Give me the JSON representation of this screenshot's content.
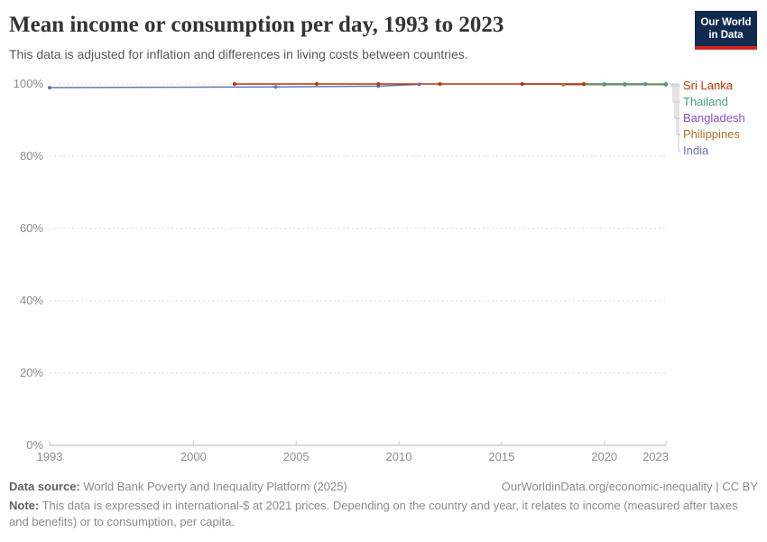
{
  "header": {
    "title": "Mean income or consumption per day, 1993 to 2023",
    "subtitle": "This data is adjusted for inflation and differences in living costs between countries."
  },
  "logo": {
    "line1": "Our World",
    "line2": "in Data"
  },
  "colors": {
    "logo_bg": "#112B4E",
    "logo_bar": "#CE261E",
    "axis": "#b3b3b3",
    "axis_tick": "#cccccc",
    "grid": "#dedede",
    "tick_label": "#8c8c8c",
    "connector": "#c9c9c9"
  },
  "chart_data": {
    "type": "line",
    "title": "Mean income or consumption per day, 1993 to 2023",
    "subtitle": "This data is adjusted for inflation and differences in living costs between countries.",
    "xlabel": "",
    "ylabel": "",
    "unit": "%",
    "xlim": [
      1993,
      2023
    ],
    "ylim": [
      0,
      100
    ],
    "grid": "horizontal-dashed",
    "legend_position": "right",
    "x_ticks": [
      {
        "value": 1993,
        "label": "1993"
      },
      {
        "value": 2000,
        "label": "2000"
      },
      {
        "value": 2005,
        "label": "2005"
      },
      {
        "value": 2010,
        "label": "2010"
      },
      {
        "value": 2015,
        "label": "2015"
      },
      {
        "value": 2020,
        "label": "2020"
      },
      {
        "value": 2023,
        "label": "2023"
      }
    ],
    "y_ticks": [
      {
        "value": 0,
        "label": "0%"
      },
      {
        "value": 20,
        "label": "20%"
      },
      {
        "value": 40,
        "label": "40%"
      },
      {
        "value": 60,
        "label": "60%"
      },
      {
        "value": 80,
        "label": "80%"
      },
      {
        "value": 100,
        "label": "100%"
      }
    ],
    "series": [
      {
        "name": "Sri Lanka",
        "color": "#B13507",
        "points": [
          [
            2002,
            100
          ],
          [
            2006,
            100
          ],
          [
            2009,
            100
          ],
          [
            2012,
            100
          ],
          [
            2016,
            100
          ],
          [
            2019,
            100
          ]
        ]
      },
      {
        "name": "Thailand",
        "color": "#4C9C7C",
        "points": [
          [
            2019,
            100
          ],
          [
            2020,
            100
          ],
          [
            2021,
            100
          ],
          [
            2022,
            100
          ],
          [
            2023,
            100
          ]
        ]
      },
      {
        "name": "Bangladesh",
        "color": "#8D4FC5",
        "points": [
          [
            2016,
            100
          ],
          [
            2022,
            100
          ]
        ]
      },
      {
        "name": "Philippines",
        "color": "#AD7334",
        "points": [
          [
            2018,
            99.8
          ],
          [
            2020,
            99.8
          ],
          [
            2021,
            99.8
          ],
          [
            2023,
            99.8
          ]
        ]
      },
      {
        "name": "India",
        "color": "#6577B3",
        "points": [
          [
            1993,
            99.0
          ],
          [
            2004,
            99.2
          ],
          [
            2009,
            99.4
          ],
          [
            2011,
            99.9
          ]
        ]
      }
    ]
  },
  "footer": {
    "datasource_label": "Data source:",
    "datasource": "World Bank Poverty and Inequality Platform (2025)",
    "link": "OurWorldinData.org/economic-inequality | CC BY",
    "note_label": "Note:",
    "note": "This data is expressed in international-$ at 2021 prices. Depending on the country and year, it relates to income (measured after taxes and benefits) or to consumption, per capita."
  }
}
